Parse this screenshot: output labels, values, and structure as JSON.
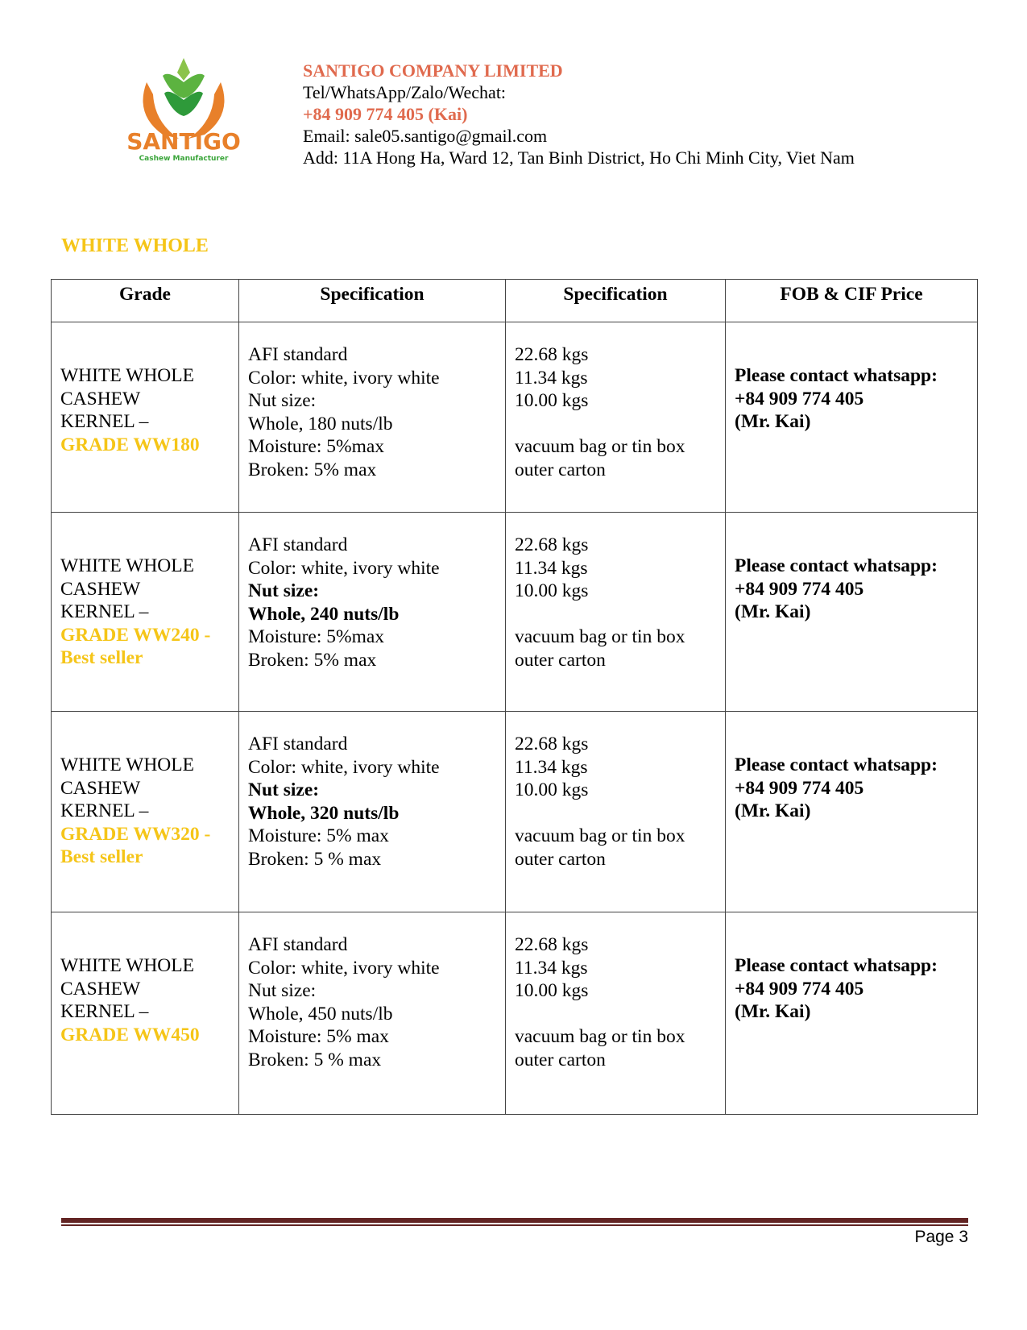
{
  "company": {
    "logo_text": "SANTIGO",
    "logo_tagline": "Cashew Manufacturer",
    "name": "SANTIGO COMPANY LIMITED",
    "tel_label": "Tel/WhatsApp/Zalo/Wechat:",
    "phone": "+84 909 774 405 (Kai)",
    "email": "Email: sale05.santigo@gmail.com",
    "address": "Add: 11A Hong Ha, Ward 12, Tan Binh District, Ho Chi Minh City, Viet Nam"
  },
  "section_title": "WHITE WHOLE",
  "table": {
    "headers": [
      "Grade",
      "Specification",
      "Specification",
      "FOB & CIF Price"
    ],
    "rows": [
      {
        "grade": [
          "WHITE WHOLE",
          "CASHEW",
          "KERNEL –"
        ],
        "grade_hl": [
          "GRADE WW180"
        ],
        "spec": [
          "AFI standard",
          "Color: white, ivory white",
          "Nut size:",
          "Whole, 180 nuts/lb",
          "Moisture: 5%max",
          "Broken: 5% max"
        ],
        "bold_idx": [],
        "pack": [
          "22.68 kgs",
          "11.34 kgs",
          "10.00 kgs",
          "",
          "vacuum bag or tin box",
          "outer carton"
        ],
        "price": [
          "Please contact whatsapp:",
          "+84 909 774 405",
          "(Mr. Kai)"
        ]
      },
      {
        "grade": [
          "WHITE WHOLE",
          "CASHEW",
          "KERNEL –"
        ],
        "grade_hl": [
          "GRADE WW240 -",
          "Best seller"
        ],
        "spec": [
          "AFI standard",
          "Color: white, ivory white",
          "Nut size:",
          "Whole, 240 nuts/lb",
          "Moisture: 5%max",
          "Broken: 5% max"
        ],
        "bold_idx": [
          2,
          3
        ],
        "pack": [
          "22.68 kgs",
          "11.34 kgs",
          "10.00 kgs",
          "",
          "vacuum bag or tin box",
          "outer carton"
        ],
        "price": [
          "Please contact whatsapp:",
          "+84 909 774 405",
          "(Mr. Kai)"
        ]
      },
      {
        "grade": [
          "WHITE WHOLE",
          "CASHEW",
          "KERNEL –"
        ],
        "grade_hl": [
          "GRADE WW320 -",
          "Best seller"
        ],
        "spec": [
          "AFI standard",
          "Color: white, ivory white",
          "Nut size:",
          "Whole, 320 nuts/lb",
          "Moisture: 5% max",
          "Broken: 5 % max"
        ],
        "bold_idx": [
          2,
          3
        ],
        "pack": [
          "22.68 kgs",
          "11.34 kgs",
          "10.00 kgs",
          "",
          "vacuum bag or tin box",
          "outer carton"
        ],
        "price": [
          "Please contact whatsapp:",
          "+84 909 774 405",
          "(Mr. Kai)"
        ]
      },
      {
        "grade": [
          "WHITE WHOLE",
          "CASHEW",
          "KERNEL –"
        ],
        "grade_hl": [
          "GRADE WW450"
        ],
        "spec": [
          "AFI standard",
          "Color: white, ivory white",
          "Nut size:",
          "Whole, 450 nuts/lb",
          "Moisture: 5% max",
          "Broken: 5 % max"
        ],
        "bold_idx": [],
        "pack": [
          "22.68 kgs",
          "11.34 kgs",
          "10.00 kgs",
          "",
          "vacuum bag or tin box",
          "outer carton"
        ],
        "price": [
          "Please contact whatsapp:",
          "+84 909 774 405",
          "(Mr. Kai)"
        ]
      }
    ]
  },
  "footer": {
    "page": "Page 3"
  },
  "colors": {
    "company": "#e06a4e",
    "grade": "#f5c518",
    "footer_rule": "#622423",
    "logo_orange": "#e8802a",
    "logo_green": "#3aa53a"
  }
}
